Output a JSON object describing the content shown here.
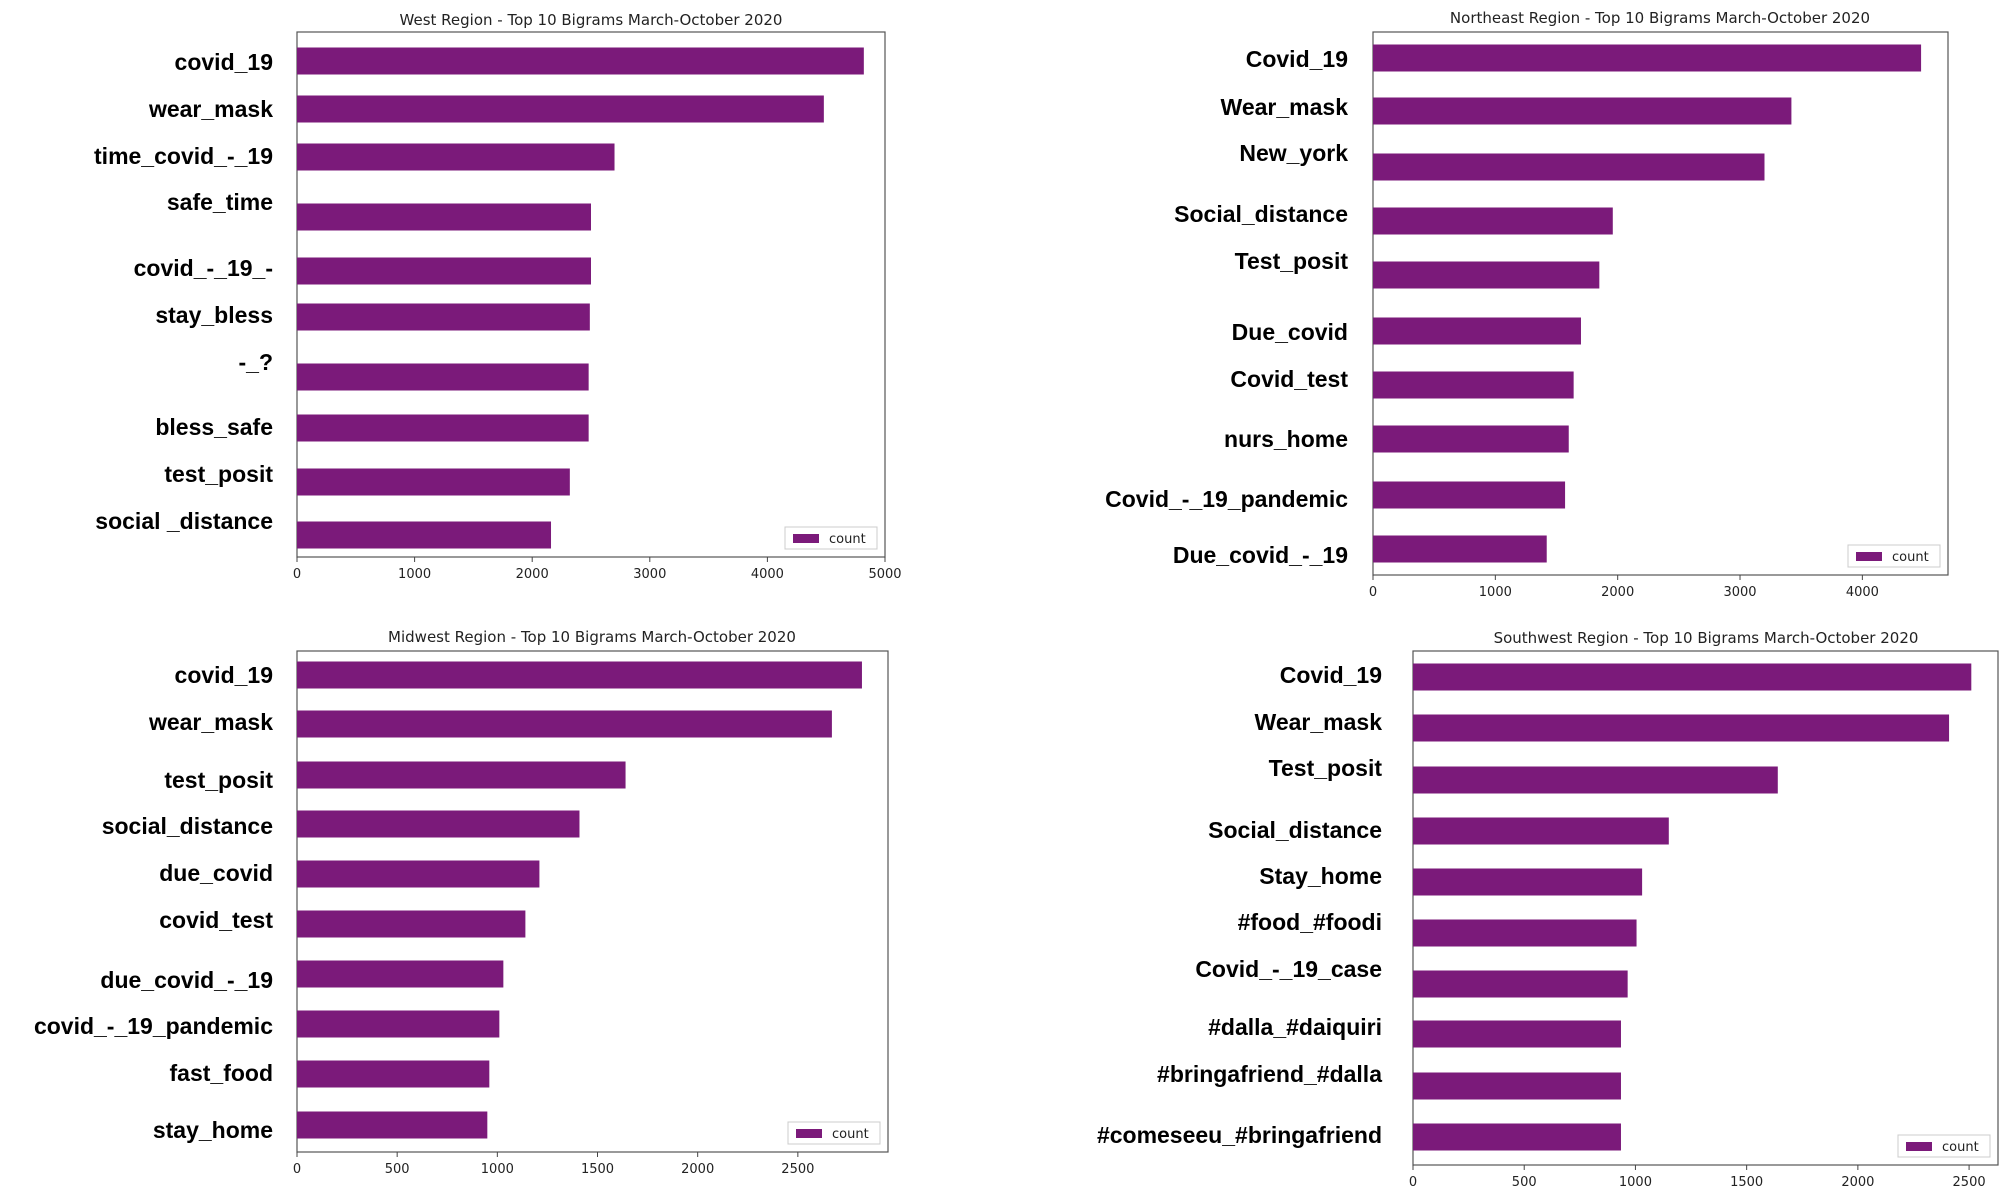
{
  "bar_color": "#7b1a7a",
  "legend_label": "count",
  "chart_data": [
    {
      "type": "bar",
      "orientation": "horizontal",
      "title": "West Region - Top 10 Bigrams March-October 2020",
      "categories": [
        "covid_19",
        "wear_mask",
        "time_covid_-_19",
        "safe_time",
        "covid_-_19_-",
        "stay_bless",
        "-_?",
        "bless_safe",
        "test_posit",
        "social _distance"
      ],
      "values": [
        4820,
        4480,
        2700,
        2500,
        2500,
        2490,
        2480,
        2480,
        2320,
        2160
      ],
      "xlim": [
        0,
        5000
      ],
      "xticks": [
        "0",
        "1000",
        "2000",
        "3000",
        "4000",
        "5000"
      ],
      "legend": "count",
      "legend_position": "lower-right"
    },
    {
      "type": "bar",
      "orientation": "horizontal",
      "title": "Northeast Region - Top 10 Bigrams March-October 2020",
      "categories": [
        "Covid_19",
        "Wear_mask",
        "New_york",
        "Social_distance",
        "Test_posit",
        "Due_covid",
        "Covid_test",
        "nurs_home",
        "Covid_-_19_pandemic",
        "Due_covid_-_19"
      ],
      "values": [
        4480,
        3420,
        3200,
        1960,
        1850,
        1700,
        1640,
        1600,
        1570,
        1420
      ],
      "xlim": [
        0,
        4700
      ],
      "xticks": [
        "0",
        "1000",
        "2000",
        "3000",
        "4000"
      ],
      "legend": "count",
      "legend_position": "lower-right"
    },
    {
      "type": "bar",
      "orientation": "horizontal",
      "title": "Midwest Region - Top 10 Bigrams March-October 2020",
      "categories": [
        "covid_19",
        "wear_mask",
        "test_posit",
        "social_distance",
        "due_covid",
        "covid_test",
        "due_covid_-_19",
        "covid_-_19_pandemic",
        "fast_food",
        "stay_home"
      ],
      "values": [
        2820,
        2670,
        1640,
        1410,
        1210,
        1140,
        1030,
        1010,
        960,
        950
      ],
      "xlim": [
        0,
        2950
      ],
      "xticks": [
        "0",
        "500",
        "1000",
        "1500",
        "2000",
        "2500"
      ],
      "legend": "count",
      "legend_position": "lower-right"
    },
    {
      "type": "bar",
      "orientation": "horizontal",
      "title": "Southwest Region - Top 10 Bigrams March-October 2020",
      "categories": [
        "Covid_19",
        "Wear_mask",
        "Test_posit",
        "Social_distance",
        "Stay_home",
        "#food_#foodi",
        "Covid_-_19_case",
        "#dalla_#daiquiri",
        "#bringafriend_#dalla",
        "#comeseeu_#bringafriend"
      ],
      "values": [
        2510,
        2410,
        1640,
        1150,
        1030,
        1005,
        965,
        935,
        935,
        935
      ],
      "xlim": [
        0,
        2630
      ],
      "xticks": [
        "0",
        "500",
        "1000",
        "1500",
        "2000",
        "2500"
      ],
      "legend": "count",
      "legend_position": "lower-right"
    }
  ]
}
